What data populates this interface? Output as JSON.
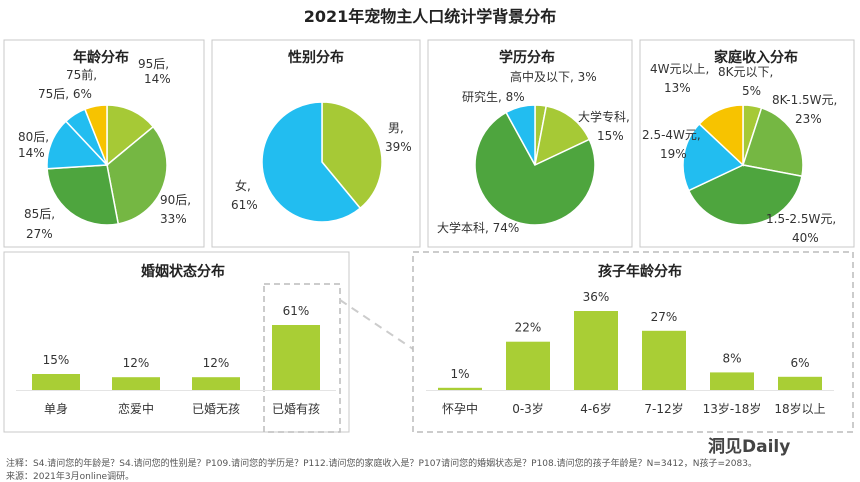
{
  "title": "2021年宠物主人口统计学背景分布",
  "colors": {
    "green_light": "#a6c936",
    "green_mid": "#75b743",
    "green_dark": "#4ea53e",
    "blue": "#22bdf0",
    "yellow": "#f7c300",
    "bar": "#a9ce35",
    "panel_border": "#c8c8c8",
    "dash_border": "#bbbbbb"
  },
  "chart_data": [
    {
      "id": "age",
      "type": "pie",
      "title": "年龄分布",
      "slices": [
        {
          "label_line1": "95后,",
          "label_line2": "14%",
          "value": 14,
          "color_key": "green_light"
        },
        {
          "label_line1": "90后,",
          "label_line2": "33%",
          "value": 33,
          "color_key": "green_mid"
        },
        {
          "label_line1": "85后,",
          "label_line2": "27%",
          "value": 27,
          "color_key": "green_dark"
        },
        {
          "label_line1": "80后,",
          "label_line2": "14%",
          "value": 14,
          "color_key": "blue"
        },
        {
          "label_line1": "75后, 6%",
          "label_line2": "",
          "value": 6,
          "color_key": "blue"
        },
        {
          "label_line1": "75前,",
          "label_line2": "",
          "value": 6,
          "color_key": "yellow"
        }
      ]
    },
    {
      "id": "gender",
      "type": "pie",
      "title": "性别分布",
      "slices": [
        {
          "label_line1": "男,",
          "label_line2": "39%",
          "value": 39,
          "color_key": "green_light"
        },
        {
          "label_line1": "女,",
          "label_line2": "61%",
          "value": 61,
          "color_key": "blue"
        }
      ]
    },
    {
      "id": "education",
      "type": "pie",
      "title": "学历分布",
      "slices": [
        {
          "label_line1": "高中及以下, 3%",
          "label_line2": "",
          "value": 3,
          "color_key": "green_light"
        },
        {
          "label_line1": "大学专科,",
          "label_line2": "15%",
          "value": 15,
          "color_key": "green_light"
        },
        {
          "label_line1": "大学本科, 74%",
          "label_line2": "",
          "value": 74,
          "color_key": "green_dark"
        },
        {
          "label_line1": "研究生, 8%",
          "label_line2": "",
          "value": 8,
          "color_key": "blue"
        }
      ]
    },
    {
      "id": "income",
      "type": "pie",
      "title": "家庭收入分布",
      "slices": [
        {
          "label_line1": "8K元以下,",
          "label_line2": "5%",
          "value": 5,
          "color_key": "green_light"
        },
        {
          "label_line1": "8K-1.5W元,",
          "label_line2": "23%",
          "value": 23,
          "color_key": "green_mid"
        },
        {
          "label_line1": "1.5-2.5W元,",
          "label_line2": "40%",
          "value": 40,
          "color_key": "green_dark"
        },
        {
          "label_line1": "2.5-4W元,",
          "label_line2": "19%",
          "value": 19,
          "color_key": "blue"
        },
        {
          "label_line1": "4W元以上,",
          "label_line2": "13%",
          "value": 13,
          "color_key": "yellow"
        }
      ]
    },
    {
      "id": "marital",
      "type": "bar",
      "title": "婚姻状态分布",
      "categories": [
        "单身",
        "恋爱中",
        "已婚无孩",
        "已婚有孩"
      ],
      "values": [
        15,
        12,
        12,
        61
      ],
      "value_labels": [
        "15%",
        "12%",
        "12%",
        "61%"
      ],
      "ylim": [
        0,
        61
      ]
    },
    {
      "id": "child_age",
      "type": "bar",
      "title": "孩子年龄分布",
      "categories": [
        "怀孕中",
        "0-3岁",
        "4-6岁",
        "7-12岁",
        "13岁-18岁",
        "18岁以上"
      ],
      "values": [
        1,
        22,
        36,
        27,
        8,
        6
      ],
      "value_labels": [
        "1%",
        "22%",
        "36%",
        "27%",
        "8%",
        "6%"
      ],
      "ylim": [
        0,
        36
      ]
    }
  ],
  "notes": {
    "line1": "注释：S4.请问您的年龄是？S4.请问您的性别是？P109.请问您的学历是？P112.请问您的家庭收入是？P107请问您的婚姻状态是？P108.请问您的孩子年龄是？N=3412，N孩子=2083。",
    "line2": "来源：2021年3月online调研。"
  },
  "watermark": "洞见Daily"
}
